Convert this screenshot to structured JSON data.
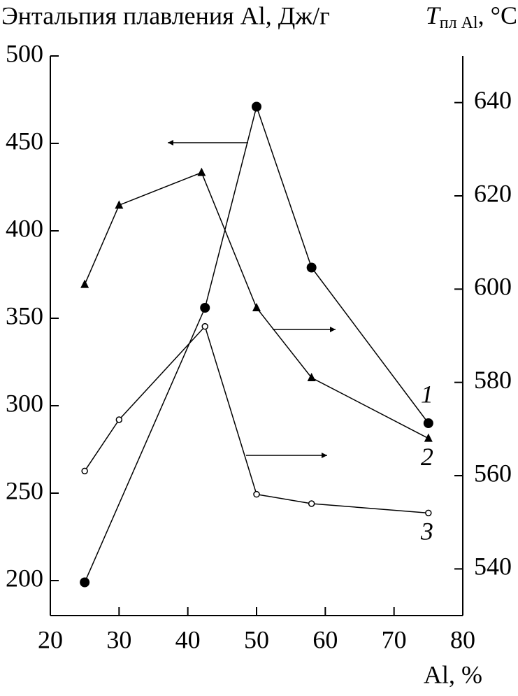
{
  "chart_data": {
    "type": "line",
    "y_label": "Энтальпия плавления Al, Дж/г",
    "y2_label": {
      "symbol": "T",
      "subscript": "пл Al",
      "unit": ", °C"
    },
    "x_label": "Al, %",
    "xlim": [
      20,
      80
    ],
    "xticks": [
      20,
      30,
      40,
      50,
      60,
      70,
      80
    ],
    "ylim": [
      180,
      500
    ],
    "yticks": [
      200,
      250,
      300,
      350,
      400,
      450,
      500
    ],
    "y2lim": [
      530,
      650
    ],
    "y2ticks": [
      540,
      560,
      580,
      600,
      620,
      640
    ],
    "series": [
      {
        "name": "1",
        "color": "#000000",
        "marker": "filled-circle",
        "axis": "y",
        "x": [
          25,
          42.5,
          50,
          58,
          75
        ],
        "values": [
          199,
          356,
          471,
          379,
          290
        ]
      },
      {
        "name": "2",
        "color": "#000000",
        "marker": "triangle",
        "axis": "y2",
        "x": [
          25,
          30,
          42,
          50,
          58,
          75
        ],
        "values": [
          601,
          618,
          625,
          596,
          581,
          568
        ]
      },
      {
        "name": "3",
        "color": "#000000",
        "marker": "open-circle",
        "axis": "y2",
        "x": [
          25,
          30,
          42.5,
          50,
          58,
          75
        ],
        "values": [
          561,
          572,
          592,
          556,
          554,
          552
        ]
      }
    ]
  }
}
